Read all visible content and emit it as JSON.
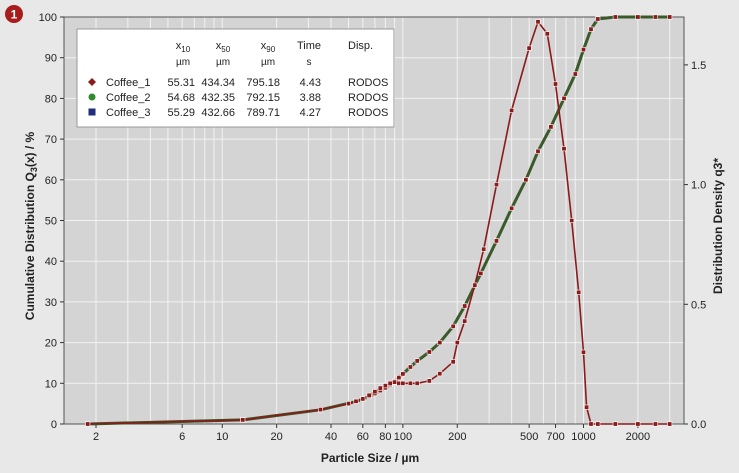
{
  "badge": "1",
  "chart_data": {
    "type": "line",
    "xlabel": "Particle Size / µm",
    "ylabel_left": "Cumulative Distribution Q3(x) / %",
    "ylabel_right": "Distribution Density q3*",
    "x_scale": "log",
    "xlim": [
      1.33,
      3600
    ],
    "ylim_left": [
      0,
      100
    ],
    "ylim_right": [
      0,
      1.7
    ],
    "x_ticks": [
      2,
      6,
      10,
      20,
      40,
      60,
      80,
      100,
      200,
      500,
      700,
      1000,
      2000
    ],
    "x_tick_labels": [
      "2",
      "6",
      "10",
      "20",
      "40",
      "60",
      "80",
      "100",
      "200",
      "500",
      "700",
      "1000",
      "2000"
    ],
    "y_left_ticks": [
      0,
      10,
      20,
      30,
      40,
      50,
      60,
      70,
      80,
      90,
      100
    ],
    "y_right_ticks": [
      0.0,
      0.5,
      1.0,
      1.5
    ],
    "y_right_tick_labels": [
      "0.0",
      "0.5",
      "1.0",
      "1.5"
    ],
    "grid": true,
    "colors": {
      "plot_bg": "#d4d4d4",
      "grid": "#f2f2f2",
      "cumulative_line": "#3a5a2a",
      "density_line": "#8b1a1a",
      "badge": "#a81c1c"
    },
    "legend_table": {
      "headers": [
        {
          "main": "x",
          "sub": "10",
          "unit": "µm"
        },
        {
          "main": "x",
          "sub": "50",
          "unit": "µm"
        },
        {
          "main": "x",
          "sub": "90",
          "unit": "µm"
        },
        {
          "main": "Time",
          "sub": "",
          "unit": "s"
        },
        {
          "main": "Disp.",
          "sub": "",
          "unit": ""
        }
      ],
      "rows": [
        {
          "name": "Coffee_1",
          "marker": "diamond",
          "color": "#8b1a1a",
          "values": [
            "55.31",
            "434.34",
            "795.18",
            "4.43",
            "RODOS"
          ]
        },
        {
          "name": "Coffee_2",
          "marker": "circle",
          "color": "#2e8b2e",
          "values": [
            "54.68",
            "432.35",
            "792.15",
            "3.88",
            "RODOS"
          ]
        },
        {
          "name": "Coffee_3",
          "marker": "square",
          "color": "#1f2f7a",
          "values": [
            "55.29",
            "432.66",
            "789.71",
            "4.27",
            "RODOS"
          ]
        }
      ]
    },
    "series": [
      {
        "name": "Coffee_1",
        "kind": "cumulative",
        "x": [
          1.8,
          13,
          35,
          55,
          60,
          65,
          70,
          75,
          80,
          85,
          90,
          95,
          100,
          110,
          120,
          140,
          160,
          190,
          220,
          270,
          330,
          400,
          480,
          560,
          660,
          780,
          900,
          1000,
          1100,
          1200,
          1500,
          2000,
          2500,
          3000
        ],
        "y": [
          0,
          1,
          3.5,
          5.5,
          6.1,
          6.8,
          7.5,
          8.2,
          8.9,
          9.7,
          10.5,
          11.4,
          12.3,
          14,
          15.5,
          17.7,
          20,
          24,
          29,
          37,
          45,
          53,
          60,
          67,
          73,
          80,
          86,
          92,
          97,
          99.5,
          100,
          100,
          100,
          100
        ]
      },
      {
        "name": "Coffee_1",
        "kind": "density",
        "x": [
          1.8,
          13,
          35,
          50,
          55,
          60,
          65,
          70,
          75,
          80,
          85,
          90,
          95,
          100,
          110,
          120,
          140,
          160,
          190,
          200,
          220,
          250,
          280,
          330,
          400,
          500,
          560,
          630,
          700,
          780,
          860,
          940,
          1000,
          1040,
          1100,
          1200,
          1500,
          2000,
          2500,
          3000
        ],
        "y": [
          0.0,
          0.017,
          0.06,
          0.085,
          0.095,
          0.105,
          0.12,
          0.135,
          0.15,
          0.16,
          0.17,
          0.175,
          0.17,
          0.17,
          0.17,
          0.17,
          0.18,
          0.21,
          0.26,
          0.34,
          0.43,
          0.58,
          0.73,
          1.0,
          1.31,
          1.57,
          1.68,
          1.63,
          1.42,
          1.15,
          0.85,
          0.55,
          0.3,
          0.07,
          0.0,
          0.0,
          0.0,
          0.0,
          0.0,
          0.0
        ]
      }
    ]
  }
}
